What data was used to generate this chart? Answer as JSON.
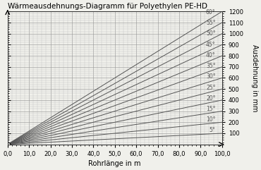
{
  "title": "Wärmeausdehnungs-Diagramm für Polyethylen PE-HD",
  "xlabel": "Rohrlänge in m",
  "ylabel": "Ausdehnung in mm",
  "xlim": [
    0,
    100
  ],
  "ylim": [
    0,
    1200
  ],
  "xticks": [
    0,
    10,
    20,
    30,
    40,
    50,
    60,
    70,
    80,
    90,
    100
  ],
  "xtick_labels": [
    "0,0",
    "10,0",
    "20,0",
    "30,0",
    "40,0",
    "50,0",
    "60,0",
    "70,0",
    "80,0",
    "90,0",
    "100,0"
  ],
  "yticks": [
    100,
    200,
    300,
    400,
    500,
    600,
    700,
    800,
    900,
    1000,
    1100,
    1200
  ],
  "delta_T_values": [
    5,
    10,
    15,
    20,
    25,
    30,
    35,
    40,
    45,
    50,
    55,
    60
  ],
  "alpha_per_mK": 0.2,
  "line_color": "#555555",
  "background_color": "#f0f0eb",
  "grid_major_color": "#999999",
  "grid_minor_color": "#bbbbbb",
  "title_fontsize": 7.5,
  "axis_label_fontsize": 7.0,
  "tick_fontsize": 6.0,
  "line_label_fontsize": 5.5,
  "line_width": 0.7,
  "label_positions_x": {
    "5": 88,
    "10": 80,
    "15": 76,
    "20": 72,
    "25": 68,
    "30": 60,
    "35": 63,
    "40": 55,
    "45": 62,
    "50": 55,
    "55": 68,
    "60": 60
  }
}
